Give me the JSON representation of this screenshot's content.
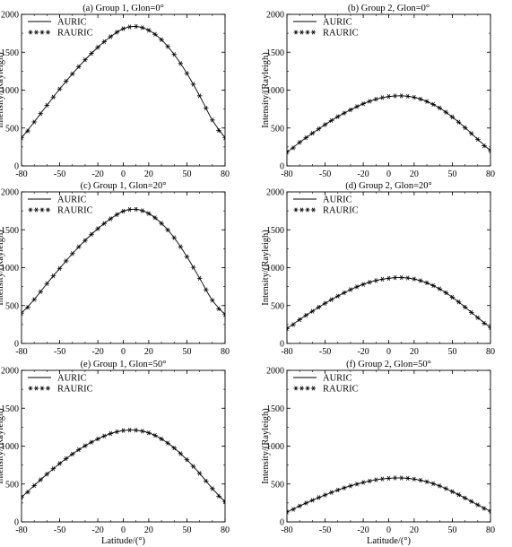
{
  "chart_data": [
    {
      "type": "line",
      "title": "(a) Group 1, Glon=0°",
      "xlabel": "",
      "ylabel": "Intensity/(Rayleigh)",
      "xlim": [
        -80,
        80
      ],
      "ylim": [
        0,
        2000
      ],
      "xticks": [
        "-80",
        "-50",
        "-20",
        "0",
        "20",
        "50",
        "80"
      ],
      "yticks": [
        "0",
        "500",
        "1000",
        "1500",
        "2000"
      ],
      "legend": {
        "position": "top-left",
        "entries": [
          "AURIC",
          "RAURIC"
        ]
      },
      "peak": {
        "x": 5,
        "y": 1840
      },
      "series": [
        {
          "name": "AURIC",
          "style": "line",
          "x": [
            -80,
            -70,
            -60,
            -50,
            -40,
            -30,
            -20,
            -10,
            0,
            10,
            20,
            30,
            40,
            50,
            60,
            70,
            80
          ],
          "y": [
            370,
            580,
            800,
            1015,
            1215,
            1400,
            1565,
            1705,
            1810,
            1840,
            1790,
            1665,
            1470,
            1220,
            925,
            605,
            370
          ]
        },
        {
          "name": "RAURIC",
          "style": "asterisk",
          "x": [
            -80,
            -70,
            -60,
            -50,
            -40,
            -30,
            -20,
            -10,
            0,
            10,
            20,
            30,
            40,
            50,
            60,
            70,
            80
          ],
          "y": [
            370,
            580,
            800,
            1015,
            1215,
            1400,
            1565,
            1705,
            1810,
            1840,
            1790,
            1665,
            1470,
            1220,
            925,
            605,
            370
          ]
        }
      ]
    },
    {
      "type": "line",
      "title": "(b) Group 2, Glon=0°",
      "xlabel": "",
      "ylabel": "Intensity/(Rayleigh)",
      "xlim": [
        -80,
        80
      ],
      "ylim": [
        0,
        2000
      ],
      "xticks": [
        "-80",
        "-50",
        "-20",
        "0",
        "20",
        "50",
        "80"
      ],
      "yticks": [
        "0",
        "500",
        "1000",
        "1500",
        "2000"
      ],
      "legend": {
        "position": "top-left",
        "entries": [
          "AURIC",
          "RAURIC"
        ]
      },
      "peak": {
        "x": 5,
        "y": 925
      },
      "series": [
        {
          "name": "AURIC",
          "style": "line",
          "x": [
            -80,
            -70,
            -60,
            -50,
            -40,
            -30,
            -20,
            -10,
            0,
            10,
            20,
            30,
            40,
            50,
            60,
            70,
            80
          ],
          "y": [
            180,
            310,
            430,
            545,
            650,
            740,
            820,
            880,
            915,
            925,
            905,
            850,
            765,
            645,
            505,
            350,
            200
          ]
        },
        {
          "name": "RAURIC",
          "style": "asterisk",
          "x": [
            -80,
            -70,
            -60,
            -50,
            -40,
            -30,
            -20,
            -10,
            0,
            10,
            20,
            30,
            40,
            50,
            60,
            70,
            80
          ],
          "y": [
            180,
            310,
            430,
            545,
            650,
            740,
            820,
            880,
            915,
            925,
            905,
            850,
            765,
            645,
            505,
            350,
            200
          ]
        }
      ]
    },
    {
      "type": "line",
      "title": "(c) Group 1, Glon=20°",
      "xlabel": "",
      "ylabel": "Intensity/(Rayleigh)",
      "xlim": [
        -80,
        80
      ],
      "ylim": [
        0,
        2000
      ],
      "xticks": [
        "-80",
        "-50",
        "-20",
        "0",
        "20",
        "50",
        "80"
      ],
      "yticks": [
        "0",
        "500",
        "1000",
        "1500",
        "2000"
      ],
      "legend": {
        "position": "top-left",
        "entries": [
          "AURIC",
          "RAURIC"
        ]
      },
      "peak": {
        "x": 5,
        "y": 1775
      },
      "series": [
        {
          "name": "AURIC",
          "style": "line",
          "x": [
            -80,
            -70,
            -60,
            -50,
            -40,
            -30,
            -20,
            -10,
            0,
            10,
            20,
            30,
            40,
            50,
            60,
            70,
            80
          ],
          "y": [
            400,
            580,
            790,
            990,
            1185,
            1360,
            1515,
            1645,
            1745,
            1770,
            1715,
            1585,
            1395,
            1145,
            860,
            570,
            380
          ]
        },
        {
          "name": "RAURIC",
          "style": "asterisk",
          "x": [
            -80,
            -70,
            -60,
            -50,
            -40,
            -30,
            -20,
            -10,
            0,
            10,
            20,
            30,
            40,
            50,
            60,
            70,
            80
          ],
          "y": [
            400,
            580,
            790,
            990,
            1185,
            1360,
            1515,
            1645,
            1745,
            1770,
            1715,
            1585,
            1395,
            1145,
            860,
            570,
            380
          ]
        }
      ]
    },
    {
      "type": "line",
      "title": "(d) Group 2, Glon=20°",
      "xlabel": "",
      "ylabel": "Intensity/(Rayleigh)",
      "xlim": [
        -80,
        80
      ],
      "ylim": [
        0,
        2000
      ],
      "xticks": [
        "-80",
        "-50",
        "-20",
        "0",
        "20",
        "50",
        "80"
      ],
      "yticks": [
        "0",
        "500",
        "1000",
        "1500",
        "2000"
      ],
      "legend": {
        "position": "top-left",
        "entries": [
          "AURIC",
          "RAURIC"
        ]
      },
      "peak": {
        "x": 5,
        "y": 870
      },
      "series": [
        {
          "name": "AURIC",
          "style": "line",
          "x": [
            -80,
            -70,
            -60,
            -50,
            -40,
            -30,
            -20,
            -10,
            0,
            10,
            20,
            30,
            40,
            50,
            60,
            70,
            80
          ],
          "y": [
            195,
            315,
            425,
            530,
            625,
            710,
            780,
            830,
            860,
            870,
            850,
            800,
            720,
            610,
            480,
            340,
            210
          ]
        },
        {
          "name": "RAURIC",
          "style": "asterisk",
          "x": [
            -80,
            -70,
            -60,
            -50,
            -40,
            -30,
            -20,
            -10,
            0,
            10,
            20,
            30,
            40,
            50,
            60,
            70,
            80
          ],
          "y": [
            195,
            315,
            425,
            530,
            625,
            710,
            780,
            830,
            860,
            870,
            850,
            800,
            720,
            610,
            480,
            340,
            210
          ]
        }
      ]
    },
    {
      "type": "line",
      "title": "(e) Group 1, Glon=50°",
      "xlabel": "Latitude/(°)",
      "ylabel": "Intensity/(Rayleigh)",
      "xlim": [
        -80,
        80
      ],
      "ylim": [
        0,
        2000
      ],
      "xticks": [
        "-80",
        "-50",
        "-20",
        "0",
        "20",
        "50",
        "80"
      ],
      "yticks": [
        "0",
        "500",
        "1000",
        "1500",
        "2000"
      ],
      "legend": {
        "position": "top-left",
        "entries": [
          "AURIC",
          "RAURIC"
        ]
      },
      "peak": {
        "x": 5,
        "y": 1215
      },
      "series": [
        {
          "name": "AURIC",
          "style": "line",
          "x": [
            -80,
            -70,
            -60,
            -50,
            -40,
            -30,
            -20,
            -10,
            0,
            10,
            20,
            30,
            40,
            50,
            60,
            70,
            80
          ],
          "y": [
            325,
            480,
            630,
            770,
            895,
            1005,
            1095,
            1165,
            1205,
            1210,
            1175,
            1095,
            975,
            820,
            640,
            440,
            265
          ]
        },
        {
          "name": "RAURIC",
          "style": "asterisk",
          "x": [
            -80,
            -70,
            -60,
            -50,
            -40,
            -30,
            -20,
            -10,
            0,
            10,
            20,
            30,
            40,
            50,
            60,
            70,
            80
          ],
          "y": [
            325,
            480,
            630,
            770,
            895,
            1005,
            1095,
            1165,
            1205,
            1210,
            1175,
            1095,
            975,
            820,
            640,
            440,
            265
          ]
        }
      ]
    },
    {
      "type": "line",
      "title": "(f) Group 2, Glon=50°",
      "xlabel": "Latitude/(°)",
      "ylabel": "Intensity/(Rayleigh)",
      "xlim": [
        -80,
        80
      ],
      "ylim": [
        0,
        2000
      ],
      "xticks": [
        "-80",
        "-50",
        "-20",
        "0",
        "20",
        "50",
        "80"
      ],
      "yticks": [
        "0",
        "500",
        "1000",
        "1500",
        "2000"
      ],
      "legend": {
        "position": "top-left",
        "entries": [
          "AURIC",
          "RAURIC"
        ]
      },
      "peak": {
        "x": 5,
        "y": 580
      },
      "series": [
        {
          "name": "AURIC",
          "style": "line",
          "x": [
            -80,
            -70,
            -60,
            -50,
            -40,
            -30,
            -20,
            -10,
            0,
            10,
            20,
            30,
            40,
            50,
            60,
            70,
            80
          ],
          "y": [
            130,
            210,
            285,
            355,
            420,
            475,
            520,
            555,
            575,
            580,
            565,
            530,
            475,
            400,
            315,
            225,
            140
          ]
        },
        {
          "name": "RAURIC",
          "style": "asterisk",
          "x": [
            -80,
            -70,
            -60,
            -50,
            -40,
            -30,
            -20,
            -10,
            0,
            10,
            20,
            30,
            40,
            50,
            60,
            70,
            80
          ],
          "y": [
            130,
            210,
            285,
            355,
            420,
            475,
            520,
            555,
            575,
            580,
            565,
            530,
            475,
            400,
            315,
            225,
            140
          ]
        }
      ]
    }
  ]
}
